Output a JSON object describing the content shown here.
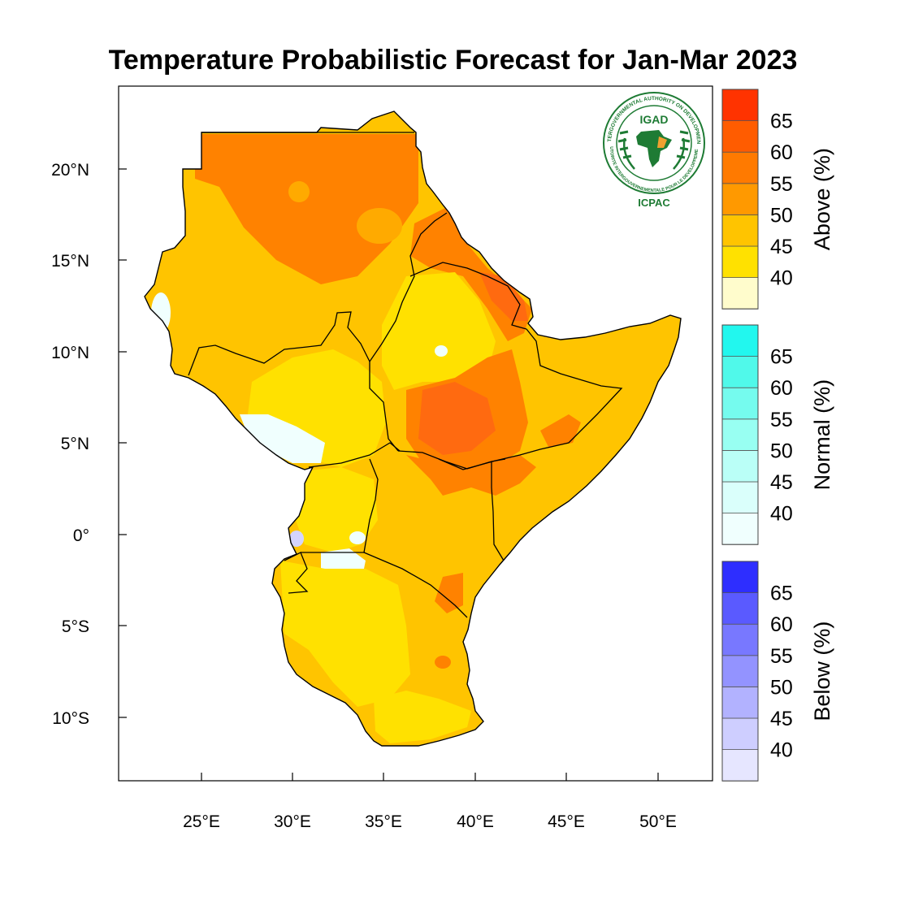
{
  "title": "Temperature Probabilistic Forecast for Jan-Mar 2023",
  "logo": {
    "acronym": "IGAD",
    "ring_text_top": "INTERGOVERNMENTAL AUTHORITY ON DEVELOPMENT",
    "ring_text_bottom": "AUTORITE INTERGOUVERNEMENTALE POUR LE DEVELOPPEMENT",
    "caption": "ICPAC",
    "icon": "igad-emblem-africa-map",
    "colors": {
      "green": "#1e7b34",
      "orange": "#f0a030"
    }
  },
  "axes": {
    "lon_ticks": [
      "25°E",
      "30°E",
      "35°E",
      "40°E",
      "45°E",
      "50°E"
    ],
    "lat_ticks": [
      "20°N",
      "15°N",
      "10°N",
      "5°N",
      "0°",
      "5°S",
      "10°S"
    ]
  },
  "legend": {
    "above": {
      "title": "Above (%)",
      "labels": [
        "40",
        "45",
        "50",
        "55",
        "60",
        "65"
      ],
      "colors": [
        "#fffccc",
        "#ffe100",
        "#ffc400",
        "#ff9900",
        "#ff7a00",
        "#ff5c00",
        "#ff3300"
      ]
    },
    "normal": {
      "title": "Normal (%)",
      "labels": [
        "40",
        "45",
        "50",
        "55",
        "60",
        "65"
      ],
      "colors": [
        "#f0fffe",
        "#dafffb",
        "#bafff7",
        "#98fff2",
        "#75fbee",
        "#50f9ea",
        "#22f7ee"
      ]
    },
    "below": {
      "title": "Below (%)",
      "labels": [
        "40",
        "45",
        "50",
        "55",
        "60",
        "65"
      ],
      "colors": [
        "#e6e6ff",
        "#ceceff",
        "#b2b2ff",
        "#9393ff",
        "#7878ff",
        "#5a5aff",
        "#2e2eff"
      ]
    }
  },
  "map_colors": {
    "above_40": "#ffe100",
    "above_45": "#ffc400",
    "above_50": "#ffaa00",
    "above_55": "#ff8200",
    "above_60": "#ff6a10",
    "normal_40": "#f0fffe",
    "below_40": "#d4d4ff"
  }
}
